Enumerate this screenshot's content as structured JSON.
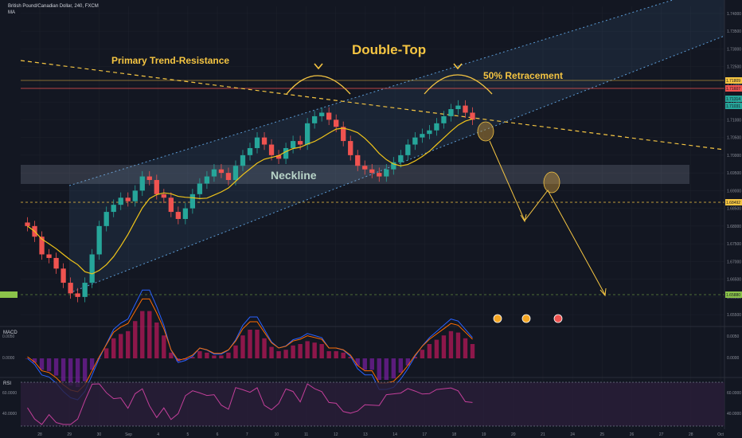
{
  "header": {
    "symbol": "British Pound/Canadian Dollar, 240, FXCM",
    "indicator": "MA"
  },
  "annotations": {
    "title": "Double-Top",
    "trend_label": "Primary Trend-Resistance",
    "retrace_label": "50% Retracement",
    "neckline_label": "Neckline"
  },
  "colors": {
    "bg": "#131722",
    "up": "#26a69a",
    "down": "#ef5350",
    "ma": "#f0c419",
    "annotation": "#f5c542",
    "channel": "#5b9bd5",
    "rsi_band": "#2a1e3a"
  },
  "price_axis": {
    "ticks": [
      "1.74000",
      "1.73500",
      "1.73000",
      "1.72500",
      "1.72000",
      "1.71500",
      "1.71000",
      "1.70500",
      "1.70000",
      "1.69500",
      "1.69000",
      "1.68500",
      "1.68000",
      "1.67500",
      "1.67000",
      "1.66500",
      "1.66000",
      "1.65500"
    ],
    "labels": [
      {
        "text": "1.71809",
        "color": "#f5c542"
      },
      {
        "text": "1.71607",
        "color": "#ef5350"
      },
      {
        "text": "1.71314",
        "color": "#26a69a"
      },
      {
        "text": "1.71031",
        "color": "#26a69a"
      },
      {
        "text": "1.68492",
        "color": "#f5c542"
      },
      {
        "text": "1.65880",
        "color": "#8bc34a"
      }
    ]
  },
  "time_axis": [
    "28",
    "29",
    "30",
    "Sep",
    "4",
    "5",
    "6",
    "7",
    "10",
    "11",
    "12",
    "13",
    "14",
    "17",
    "18",
    "19",
    "20",
    "21",
    "24",
    "25",
    "26",
    "27",
    "28",
    "Oct"
  ],
  "macd": {
    "label": "MACD",
    "ticks": [
      "0.0050",
      "0.0000"
    ]
  },
  "rsi": {
    "label": "RSI",
    "ticks": [
      "60.0000",
      "40.0000"
    ]
  },
  "chart_data": {
    "type": "candlestick",
    "title": "Double-Top",
    "series_name": "British Pound/Canadian Dollar, 240, FXCM",
    "ylim": [
      1.653,
      1.742
    ],
    "close": [
      1.68,
      1.677,
      1.672,
      1.671,
      1.668,
      1.664,
      1.661,
      1.66,
      1.664,
      1.672,
      1.68,
      1.684,
      1.686,
      1.688,
      1.687,
      1.69,
      1.694,
      1.693,
      1.689,
      1.688,
      1.684,
      1.682,
      1.685,
      1.689,
      1.692,
      1.694,
      1.696,
      1.695,
      1.693,
      1.697,
      1.7,
      1.702,
      1.705,
      1.703,
      1.7,
      1.699,
      1.702,
      1.704,
      1.703,
      1.709,
      1.711,
      1.712,
      1.71,
      1.708,
      1.704,
      1.7,
      1.697,
      1.696,
      1.695,
      1.694,
      1.696,
      1.698,
      1.7,
      1.703,
      1.705,
      1.706,
      1.707,
      1.709,
      1.711,
      1.713,
      1.714,
      1.712,
      1.71
    ]
  }
}
